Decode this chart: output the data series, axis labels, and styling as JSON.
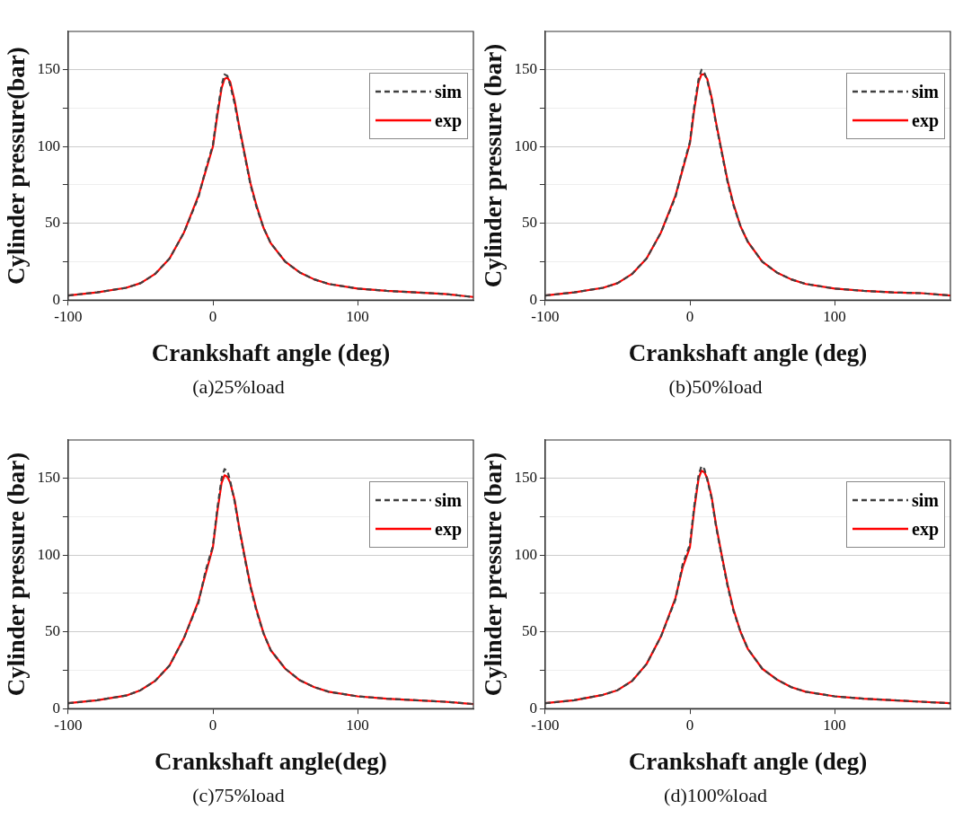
{
  "chart_data": [
    {
      "type": "line",
      "ylabel": "Cylinder pressure(bar)",
      "xlabel": "Crankshaft angle (deg)",
      "annotations": [
        "(a)25%load"
      ],
      "xlim": [
        -100,
        180
      ],
      "xticks": [
        -100,
        0,
        100
      ],
      "ylim": [
        0,
        175
      ],
      "yticks": [
        0,
        {
          "value": 25,
          "label": null
        },
        50,
        {
          "value": 75,
          "label": null
        },
        100,
        {
          "value": 125,
          "label": null
        },
        150
      ],
      "grid": "y",
      "legend": "top right",
      "x": [
        -100,
        -80,
        -60,
        -50,
        -40,
        -30,
        -20,
        -10,
        -5,
        0,
        3,
        6,
        8,
        10,
        12,
        15,
        18,
        22,
        26,
        30,
        35,
        40,
        50,
        60,
        70,
        80,
        100,
        120,
        140,
        160,
        180
      ],
      "series": [
        {
          "name": "sim",
          "color": "#404040",
          "line_style": "dashed",
          "values": [
            3,
            5,
            8,
            11,
            17,
            27,
            44,
            67,
            85,
            101,
            122,
            140,
            147,
            146,
            140,
            128,
            113,
            94,
            75,
            61,
            47,
            37,
            25,
            18,
            13.5,
            10.5,
            7.5,
            6,
            5,
            4,
            2
          ]
        },
        {
          "name": "exp",
          "color": "#ff0000",
          "line_style": "solid",
          "values": [
            3,
            5,
            8,
            11,
            17,
            27,
            44,
            68,
            84,
            100,
            120,
            138,
            144,
            145,
            142,
            130,
            114,
            95,
            76,
            62,
            47,
            37,
            25,
            18,
            13.5,
            10.5,
            7.5,
            6,
            5,
            4,
            2
          ]
        }
      ]
    },
    {
      "type": "line",
      "ylabel": "Cylinder pressure (bar)",
      "xlabel": "Crankshaft angle (deg)",
      "annotations": [
        "(b)50%load"
      ],
      "xlim": [
        -100,
        180
      ],
      "xticks": [
        -100,
        0,
        100
      ],
      "ylim": [
        0,
        175
      ],
      "yticks": [
        0,
        {
          "value": 25,
          "label": null
        },
        50,
        {
          "value": 75,
          "label": null
        },
        100,
        {
          "value": 125,
          "label": null
        },
        150
      ],
      "grid": "y",
      "legend": "top right",
      "x": [
        -100,
        -80,
        -60,
        -50,
        -40,
        -30,
        -20,
        -10,
        -5,
        0,
        3,
        6,
        8,
        10,
        12,
        15,
        18,
        22,
        26,
        30,
        35,
        40,
        50,
        60,
        70,
        80,
        100,
        120,
        140,
        160,
        180
      ],
      "series": [
        {
          "name": "sim",
          "color": "#404040",
          "line_style": "dashed",
          "values": [
            3,
            5,
            8,
            11,
            17,
            27,
            44,
            67,
            86,
            103,
            126,
            144,
            150,
            148,
            143,
            131,
            115,
            96,
            77,
            62,
            48,
            38,
            25,
            18,
            13.5,
            10.5,
            7.5,
            6,
            5,
            4.5,
            3
          ]
        },
        {
          "name": "exp",
          "color": "#ff0000",
          "line_style": "solid",
          "values": [
            3,
            5,
            8,
            11,
            17,
            27,
            44,
            68,
            85,
            102,
            124,
            142,
            147,
            147,
            144,
            132,
            116,
            97,
            78,
            63,
            48,
            38,
            25,
            18,
            13.5,
            10.5,
            7.5,
            6,
            5,
            4.5,
            3
          ]
        }
      ]
    },
    {
      "type": "line",
      "ylabel": "Cylinder pressure (bar)",
      "xlabel": "Crankshaft angle(deg)",
      "annotations": [
        "(c)75%load"
      ],
      "xlim": [
        -100,
        180
      ],
      "xticks": [
        -100,
        0,
        100
      ],
      "ylim": [
        0,
        175
      ],
      "yticks": [
        0,
        {
          "value": 25,
          "label": null
        },
        50,
        {
          "value": 75,
          "label": null
        },
        100,
        {
          "value": 125,
          "label": null
        },
        150
      ],
      "grid": "y",
      "legend": "top right",
      "x": [
        -100,
        -80,
        -60,
        -50,
        -40,
        -30,
        -20,
        -10,
        -5,
        0,
        3,
        6,
        8,
        10,
        12,
        15,
        18,
        22,
        26,
        30,
        35,
        40,
        50,
        60,
        70,
        80,
        100,
        120,
        140,
        160,
        180
      ],
      "series": [
        {
          "name": "sim",
          "color": "#404040",
          "line_style": "dashed",
          "values": [
            3.5,
            5.5,
            8.5,
            12,
            18,
            28,
            46,
            69,
            90,
            106,
            130,
            150,
            156,
            155,
            148,
            135,
            118,
            98,
            79,
            64,
            49,
            38,
            26,
            18.5,
            14,
            11,
            8,
            6.5,
            5.5,
            4.5,
            3
          ]
        },
        {
          "name": "exp",
          "color": "#ff0000",
          "line_style": "solid",
          "values": [
            3.5,
            5.5,
            8.5,
            12,
            18,
            28,
            46,
            70,
            88,
            105,
            128,
            147,
            152,
            151,
            147,
            136,
            119,
            99,
            80,
            65,
            49,
            38,
            26,
            18.5,
            14,
            11,
            8,
            6.5,
            5.5,
            4.5,
            3
          ]
        }
      ]
    },
    {
      "type": "line",
      "ylabel": "Cylinder pressure (bar)",
      "xlabel": "Crankshaft angle (deg)",
      "annotations": [
        "(d)100%load"
      ],
      "xlim": [
        -100,
        180
      ],
      "xticks": [
        -100,
        0,
        100
      ],
      "ylim": [
        0,
        175
      ],
      "yticks": [
        0,
        {
          "value": 25,
          "label": null
        },
        50,
        {
          "value": 75,
          "label": null
        },
        100,
        {
          "value": 125,
          "label": null
        },
        150
      ],
      "grid": "y",
      "legend": "top right",
      "x": [
        -100,
        -80,
        -60,
        -50,
        -40,
        -30,
        -20,
        -10,
        -5,
        0,
        3,
        6,
        8,
        10,
        12,
        15,
        18,
        22,
        26,
        30,
        35,
        40,
        50,
        60,
        70,
        80,
        100,
        120,
        140,
        160,
        180
      ],
      "series": [
        {
          "name": "sim",
          "color": "#404040",
          "line_style": "dashed",
          "values": [
            3.5,
            5.5,
            9,
            12,
            18,
            29,
            47,
            71,
            94,
            107,
            132,
            152,
            158,
            156,
            149,
            137,
            119,
            99,
            80,
            64,
            50,
            39,
            26,
            19,
            14,
            11,
            8,
            6.5,
            5.5,
            4.5,
            3.5
          ]
        },
        {
          "name": "exp",
          "color": "#ff0000",
          "line_style": "solid",
          "values": [
            3.5,
            5.5,
            9,
            12,
            18,
            29,
            47,
            72,
            92,
            105,
            130,
            150,
            155,
            154,
            150,
            138,
            120,
            100,
            81,
            65,
            50,
            39,
            26,
            19,
            14,
            11,
            8,
            6.5,
            5.5,
            4.5,
            3.5
          ]
        }
      ]
    }
  ]
}
